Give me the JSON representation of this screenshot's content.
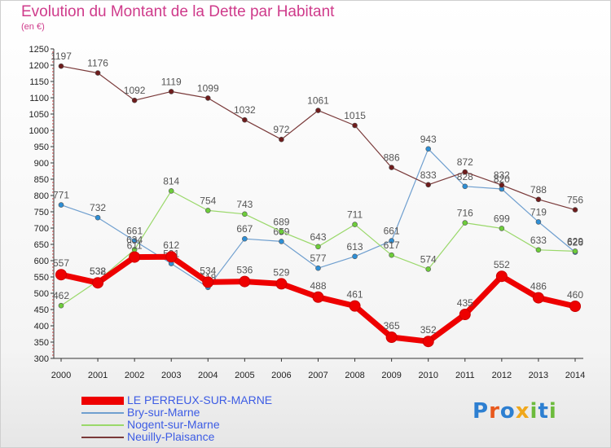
{
  "colors": {
    "title": "#cf3b8b",
    "legend_text": "#3d5ce4",
    "axis": "#333333",
    "grid": "#dddddd"
  },
  "header": {
    "title": "Evolution du Montant de la Dette par Habitant",
    "subtitle": "(en €)"
  },
  "brand": {
    "letters": [
      "P",
      "r",
      "o",
      "x",
      "i",
      "t",
      "i"
    ],
    "colors": [
      "#2d7fd1",
      "#e8581c",
      "#2d7fd1",
      "#f0a81c",
      "#6cbb3c",
      "#2d7fd1",
      "#6cbb3c"
    ]
  },
  "chart_data": {
    "type": "line",
    "title": "Evolution du Montant de la Dette par Habitant",
    "subtitle": "(en €)",
    "xlabel": "",
    "ylabel": "",
    "x": [
      "2000",
      "2001",
      "2002",
      "2003",
      "2004",
      "2005",
      "2006",
      "2007",
      "2008",
      "2009",
      "2010",
      "2011",
      "2012",
      "2013",
      "2014"
    ],
    "ylim": [
      300,
      1250
    ],
    "yticks": [
      300,
      350,
      400,
      450,
      500,
      550,
      600,
      650,
      700,
      750,
      800,
      850,
      900,
      950,
      1000,
      1050,
      1100,
      1150,
      1200,
      1250
    ],
    "grid": false,
    "legend_position": "bottom-left",
    "series": [
      {
        "name": "LE PERREUX-SUR-MARNE",
        "color": "#ee0000",
        "marker_color": "#ee0000",
        "thick": true,
        "values": [
          557,
          532,
          611,
          612,
          534,
          536,
          529,
          488,
          461,
          365,
          352,
          435,
          552,
          486,
          460
        ],
        "labels": [
          "557",
          "532",
          "611",
          "612",
          "534",
          "536",
          "529",
          "488",
          "461",
          "365",
          "352",
          "435",
          "552",
          "486",
          "460"
        ]
      },
      {
        "name": "Bry-sur-Marne",
        "color": "#6f9fcf",
        "marker_color": "#2e8fd6",
        "thick": false,
        "values": [
          771,
          732,
          661,
          591,
          518,
          667,
          659,
          577,
          613,
          661,
          943,
          828,
          820,
          719,
          626
        ],
        "labels": [
          "771",
          "732",
          "661",
          "591",
          "518",
          "667",
          "659",
          "577",
          "613",
          "661",
          "943",
          "828",
          "820",
          "719",
          "626"
        ]
      },
      {
        "name": "Nogent-sur-Marne",
        "color": "#9ad86a",
        "marker_color": "#6dcd3a",
        "thick": false,
        "values": [
          462,
          538,
          634,
          814,
          754,
          743,
          689,
          643,
          711,
          617,
          574,
          716,
          699,
          633,
          629
        ],
        "labels": [
          "462",
          "538",
          "634",
          "814",
          "754",
          "743",
          "689",
          "643",
          "711",
          "617",
          "574",
          "716",
          "699",
          "633",
          "629"
        ]
      },
      {
        "name": "Neuilly-Plaisance",
        "color": "#7a3a3a",
        "marker_color": "#6e1c1c",
        "thick": false,
        "values": [
          1197,
          1176,
          1092,
          1119,
          1099,
          1032,
          972,
          1061,
          1015,
          886,
          833,
          872,
          832,
          788,
          756
        ],
        "labels": [
          "1197",
          "1176",
          "1092",
          "1119",
          "1099",
          "1032",
          "972",
          "1061",
          "1015",
          "886",
          "833",
          "872",
          "832",
          "788",
          "756"
        ]
      }
    ]
  }
}
